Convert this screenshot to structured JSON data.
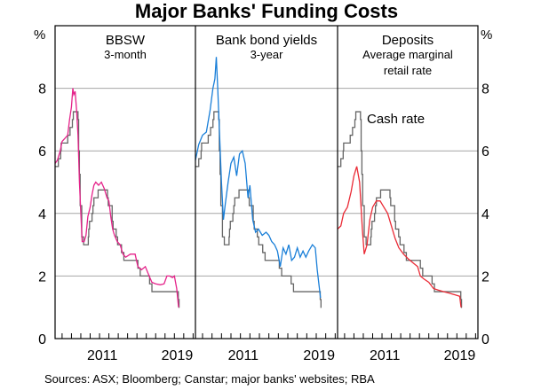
{
  "chart_data": {
    "type": "line",
    "title": "Major Banks' Funding Costs",
    "source": "Sources:   ASX; Bloomberg; Canstar; major banks' websites; RBA",
    "ylabel_left": "%",
    "ylabel_right": "%",
    "ylim": [
      0,
      10
    ],
    "yticks": [
      0,
      2,
      4,
      6,
      8
    ],
    "xlim": [
      2006.25,
      2021.25
    ],
    "xtick_labels": [
      "2011",
      "2019"
    ],
    "grid": true,
    "colors": {
      "bbsw": "#e5238a",
      "bonds": "#1a7fd8",
      "deposits": "#ea2b36",
      "cash": "#666666"
    },
    "cash_rate": {
      "name": "Cash rate",
      "steps": [
        [
          2006.25,
          5.5
        ],
        [
          2006.6,
          5.75
        ],
        [
          2006.85,
          6.0
        ],
        [
          2006.9,
          6.25
        ],
        [
          2007.6,
          6.5
        ],
        [
          2007.85,
          6.75
        ],
        [
          2008.1,
          7.0
        ],
        [
          2008.2,
          7.25
        ],
        [
          2008.7,
          7.0
        ],
        [
          2008.77,
          6.0
        ],
        [
          2008.85,
          5.25
        ],
        [
          2008.93,
          4.25
        ],
        [
          2009.1,
          3.25
        ],
        [
          2009.3,
          3.0
        ],
        [
          2009.8,
          3.25
        ],
        [
          2009.85,
          3.5
        ],
        [
          2009.93,
          3.75
        ],
        [
          2010.2,
          4.0
        ],
        [
          2010.3,
          4.25
        ],
        [
          2010.4,
          4.5
        ],
        [
          2010.85,
          4.75
        ],
        [
          2011.85,
          4.5
        ],
        [
          2011.93,
          4.25
        ],
        [
          2012.35,
          3.75
        ],
        [
          2012.45,
          3.5
        ],
        [
          2012.78,
          3.25
        ],
        [
          2012.93,
          3.0
        ],
        [
          2013.35,
          2.75
        ],
        [
          2013.6,
          2.5
        ],
        [
          2015.1,
          2.25
        ],
        [
          2015.35,
          2.0
        ],
        [
          2016.35,
          1.75
        ],
        [
          2016.6,
          1.5
        ],
        [
          2019.42,
          1.25
        ],
        [
          2019.5,
          1.0
        ]
      ]
    },
    "panels": [
      {
        "title": "BBSW",
        "subtitle": "3-month",
        "subtitle2": "",
        "series_key": "bbsw",
        "x": [
          2006.25,
          2006.5,
          2006.8,
          2007.0,
          2007.3,
          2007.6,
          2007.8,
          2008.0,
          2008.15,
          2008.25,
          2008.4,
          2008.55,
          2008.7,
          2008.85,
          2009.0,
          2009.15,
          2009.35,
          2009.55,
          2009.75,
          2010.0,
          2010.2,
          2010.4,
          2010.6,
          2010.9,
          2011.2,
          2011.5,
          2011.8,
          2012.0,
          2012.2,
          2012.4,
          2012.6,
          2012.9,
          2013.2,
          2013.5,
          2013.8,
          2014.3,
          2014.8,
          2015.1,
          2015.5,
          2015.9,
          2016.3,
          2016.6,
          2017.0,
          2017.5,
          2017.9,
          2018.2,
          2018.5,
          2018.8,
          2019.0,
          2019.25,
          2019.45
        ],
        "values": [
          5.6,
          5.7,
          6.0,
          6.3,
          6.4,
          6.5,
          7.0,
          7.4,
          8.0,
          7.8,
          7.9,
          7.3,
          6.5,
          5.0,
          4.0,
          3.1,
          3.1,
          3.3,
          3.9,
          4.2,
          4.6,
          4.9,
          5.0,
          4.9,
          5.0,
          4.8,
          4.5,
          4.4,
          3.9,
          3.5,
          3.3,
          3.1,
          3.0,
          2.7,
          2.6,
          2.7,
          2.7,
          2.3,
          2.2,
          2.3,
          2.0,
          1.8,
          1.75,
          1.72,
          1.75,
          2.0,
          2.0,
          1.95,
          2.0,
          1.6,
          1.0
        ]
      },
      {
        "title": "Bank bond yields",
        "subtitle": "3-year",
        "subtitle2": "",
        "series_key": "bonds",
        "x": [
          2006.25,
          2006.6,
          2007.0,
          2007.4,
          2007.8,
          2008.1,
          2008.3,
          2008.45,
          2008.6,
          2008.8,
          2009.0,
          2009.2,
          2009.4,
          2009.7,
          2010.0,
          2010.3,
          2010.6,
          2010.9,
          2011.2,
          2011.5,
          2011.8,
          2012.0,
          2012.3,
          2012.6,
          2012.9,
          2013.3,
          2013.7,
          2014.0,
          2014.3,
          2014.6,
          2014.9,
          2015.2,
          2015.5,
          2015.8,
          2016.1,
          2016.4,
          2016.7,
          2017.0,
          2017.3,
          2017.6,
          2017.9,
          2018.2,
          2018.6,
          2018.9,
          2019.1,
          2019.45
        ],
        "values": [
          5.7,
          6.2,
          6.5,
          6.6,
          7.3,
          8.0,
          8.3,
          9.0,
          8.0,
          6.5,
          5.0,
          3.8,
          4.3,
          5.0,
          5.6,
          5.8,
          5.2,
          5.9,
          6.0,
          5.6,
          4.5,
          4.9,
          3.8,
          3.4,
          3.5,
          3.3,
          3.4,
          3.3,
          3.1,
          3.0,
          2.8,
          2.3,
          2.9,
          2.7,
          3.0,
          2.5,
          2.6,
          2.9,
          2.6,
          2.8,
          2.6,
          2.8,
          3.0,
          2.9,
          2.2,
          1.3
        ]
      },
      {
        "title": "Deposits",
        "subtitle": "Average marginal",
        "subtitle2": "retail rate",
        "series_key": "deposits",
        "x": [
          2006.25,
          2006.6,
          2006.9,
          2007.3,
          2007.7,
          2008.0,
          2008.3,
          2008.6,
          2008.9,
          2009.1,
          2009.4,
          2009.7,
          2010.0,
          2010.4,
          2010.8,
          2011.2,
          2011.6,
          2012.0,
          2012.4,
          2012.8,
          2013.3,
          2013.8,
          2014.4,
          2014.8,
          2015.1,
          2015.5,
          2016.0,
          2016.5,
          2017.0,
          2017.6,
          2018.2,
          2018.8,
          2019.3,
          2019.45
        ],
        "values": [
          3.5,
          3.6,
          4.0,
          4.2,
          4.7,
          5.2,
          5.5,
          5.0,
          3.5,
          2.7,
          3.0,
          3.8,
          4.2,
          4.4,
          4.4,
          4.2,
          4.0,
          3.6,
          3.2,
          2.9,
          2.7,
          2.55,
          2.4,
          2.3,
          2.0,
          1.9,
          1.8,
          1.6,
          1.55,
          1.5,
          1.45,
          1.4,
          1.35,
          1.0
        ],
        "annotation": "Cash rate"
      }
    ]
  }
}
